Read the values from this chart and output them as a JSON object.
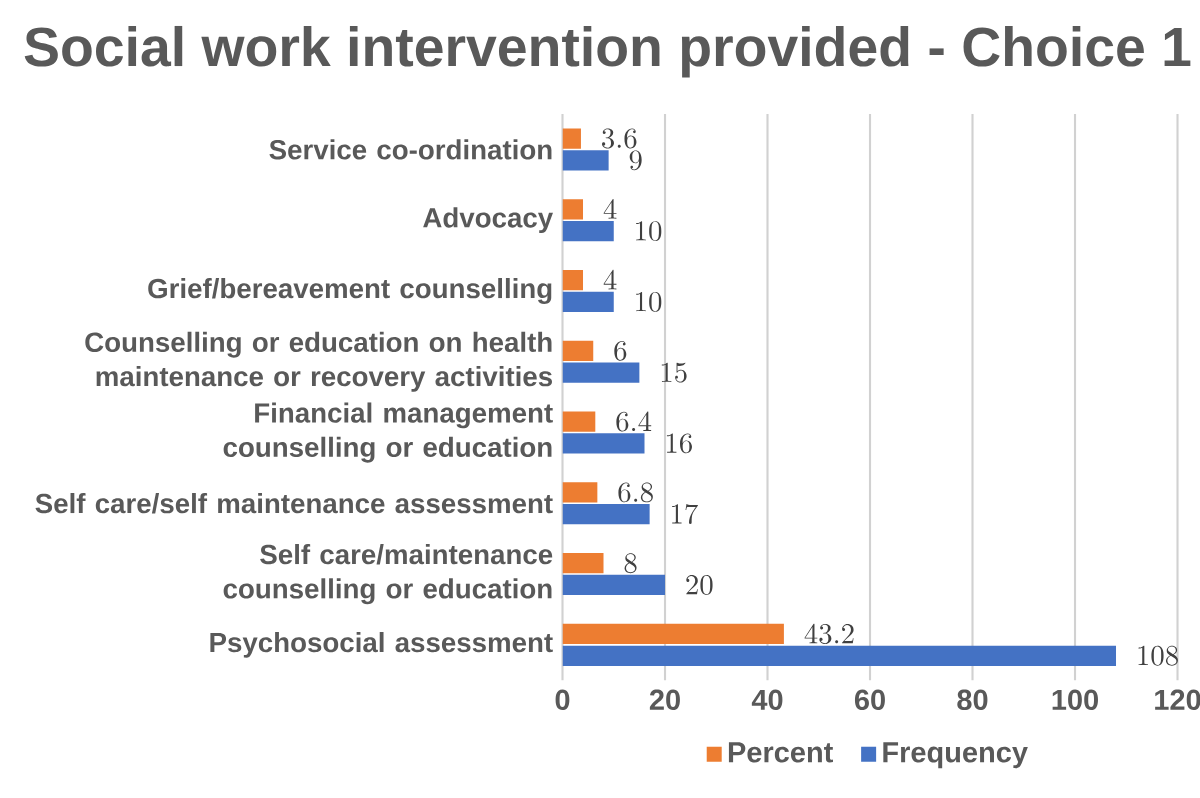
{
  "chart_data": {
    "type": "bar",
    "orientation": "horizontal",
    "title": "Social work intervention provided - Choice 1",
    "categories": [
      "Service co-ordination",
      "Advocacy",
      "Grief/bereavement counselling",
      "Counselling or education on health maintenance or recovery activities",
      "Financial management counselling or education",
      "Self care/self maintenance assessment",
      "Self care/maintenance counselling or education",
      "Psychosocial assessment"
    ],
    "series": [
      {
        "name": "Percent",
        "color": "#ed7d31",
        "values": [
          3.6,
          4,
          4,
          6,
          6.4,
          6.8,
          8,
          43.2
        ]
      },
      {
        "name": "Frequency",
        "color": "#4472c4",
        "values": [
          9,
          10,
          10,
          15,
          16,
          17,
          20,
          108
        ]
      }
    ],
    "xlim": [
      0,
      120
    ],
    "xticks": [
      0,
      20,
      40,
      60,
      80,
      100,
      120
    ],
    "grid": "x",
    "legend": "bottom",
    "data_labels": true
  }
}
